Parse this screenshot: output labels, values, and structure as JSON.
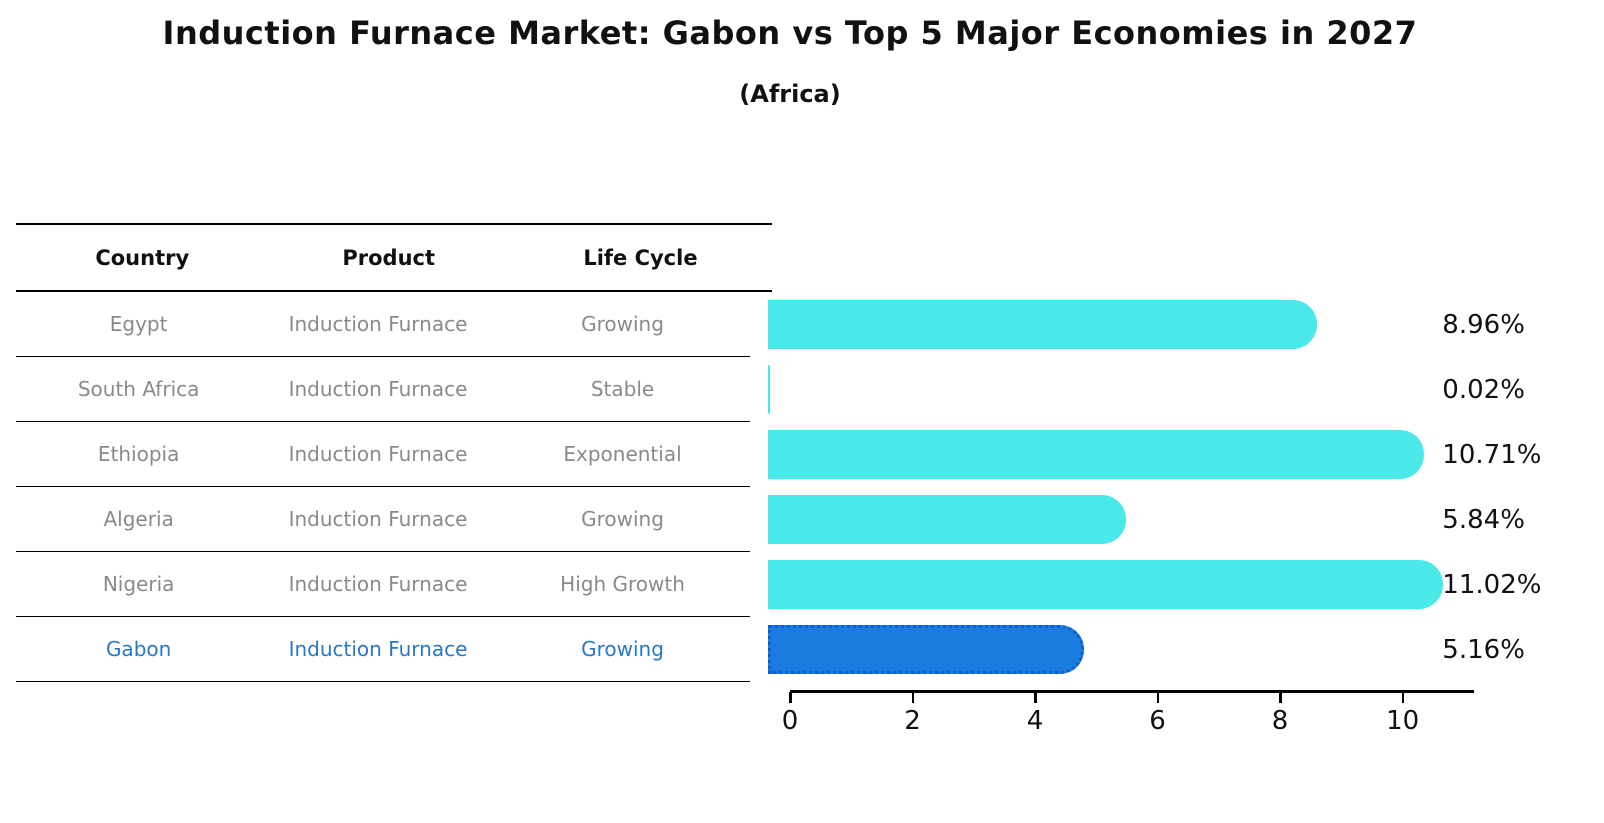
{
  "title": "Induction Furnace Market: Gabon vs Top 5 Major Economies in 2027",
  "subtitle": "(Africa)",
  "table": {
    "headers": [
      "Country",
      "Product",
      "Life Cycle"
    ],
    "rows": [
      {
        "country": "Egypt",
        "product": "Induction Furnace",
        "life_cycle": "Growing",
        "highlight": false
      },
      {
        "country": "South Africa",
        "product": "Induction Furnace",
        "life_cycle": "Stable",
        "highlight": false
      },
      {
        "country": "Ethiopia",
        "product": "Induction Furnace",
        "life_cycle": "Exponential",
        "highlight": false
      },
      {
        "country": "Algeria",
        "product": "Induction Furnace",
        "life_cycle": "Growing",
        "highlight": false
      },
      {
        "country": "Nigeria",
        "product": "Induction Furnace",
        "life_cycle": "High Growth",
        "highlight": false
      },
      {
        "country": "Gabon",
        "product": "Induction Furnace",
        "life_cycle": "Growing",
        "highlight": true
      }
    ]
  },
  "chart_data": {
    "type": "bar",
    "orientation": "horizontal",
    "title": "Induction Furnace Market: Gabon vs Top 5 Major Economies in 2027",
    "subtitle": "(Africa)",
    "categories": [
      "Egypt",
      "South Africa",
      "Ethiopia",
      "Algeria",
      "Nigeria",
      "Gabon"
    ],
    "values": [
      8.96,
      0.02,
      10.71,
      5.84,
      11.02,
      5.16
    ],
    "value_labels": [
      "8.96%",
      "0.02%",
      "10.71%",
      "5.84%",
      "11.02%",
      "5.16%"
    ],
    "xlabel": "",
    "ylabel": "",
    "xlim": [
      0,
      11.1
    ],
    "xticks": [
      "0",
      "2",
      "4",
      "6",
      "8",
      "10"
    ],
    "grid": false,
    "legend": "none",
    "colors": {
      "default_bar": "#4ae8e8",
      "highlight_bar": "#1b7ce0",
      "highlight_border": "#0d5ecf",
      "highlight_text": "#2878c8",
      "cell_text": "#8a8a8a",
      "header_text": "#111111"
    }
  }
}
